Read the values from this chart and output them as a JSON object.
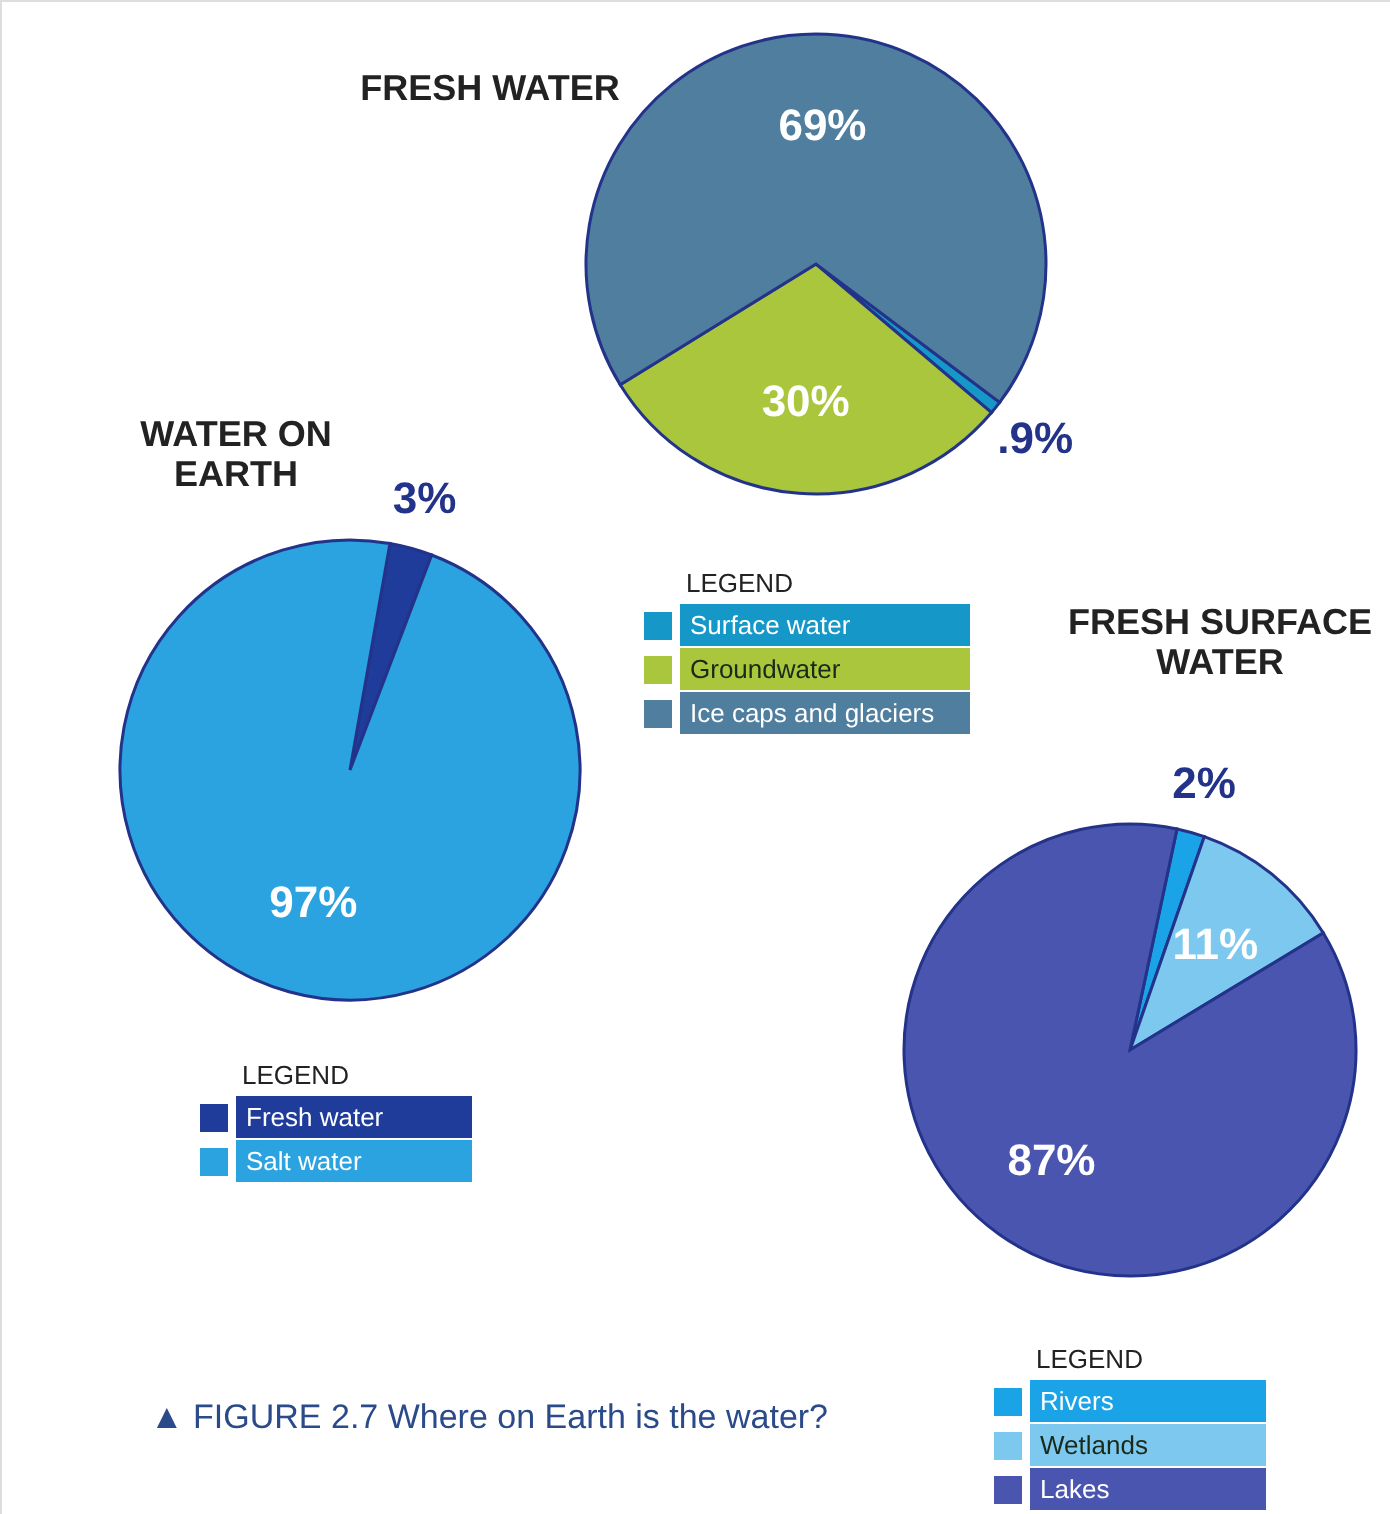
{
  "chart_data": [
    {
      "type": "pie",
      "title": "WATER ON EARTH",
      "categories": [
        "Fresh water",
        "Salt water"
      ],
      "values": [
        3,
        97
      ],
      "colors": [
        "#1f3c9a",
        "#2aa3e0"
      ],
      "value_labels": [
        "3%",
        "97%"
      ],
      "legend_title": "LEGEND",
      "legend": "bottom"
    },
    {
      "type": "pie",
      "title": "FRESH WATER",
      "categories": [
        "Surface water",
        "Groundwater",
        "Ice caps and glaciers"
      ],
      "values": [
        0.9,
        30,
        69
      ],
      "colors": [
        "#1597c7",
        "#a9c63c",
        "#4f7e9e"
      ],
      "value_labels": [
        ".9%",
        "30%",
        "69%"
      ],
      "legend_title": "LEGEND",
      "legend": "bottom"
    },
    {
      "type": "pie",
      "title": "FRESH SURFACE WATER",
      "categories": [
        "Rivers",
        "Wetlands",
        "Lakes"
      ],
      "values": [
        2,
        11,
        87
      ],
      "colors": [
        "#1aa3e6",
        "#7cc8ee",
        "#4a55b0"
      ],
      "value_labels": [
        "2%",
        "11%",
        "87%"
      ],
      "legend_title": "LEGEND",
      "legend": "bottom",
      "annotations": [
        "▲ FIGURE 2.7 Where on Earth is the water?"
      ]
    }
  ]
}
